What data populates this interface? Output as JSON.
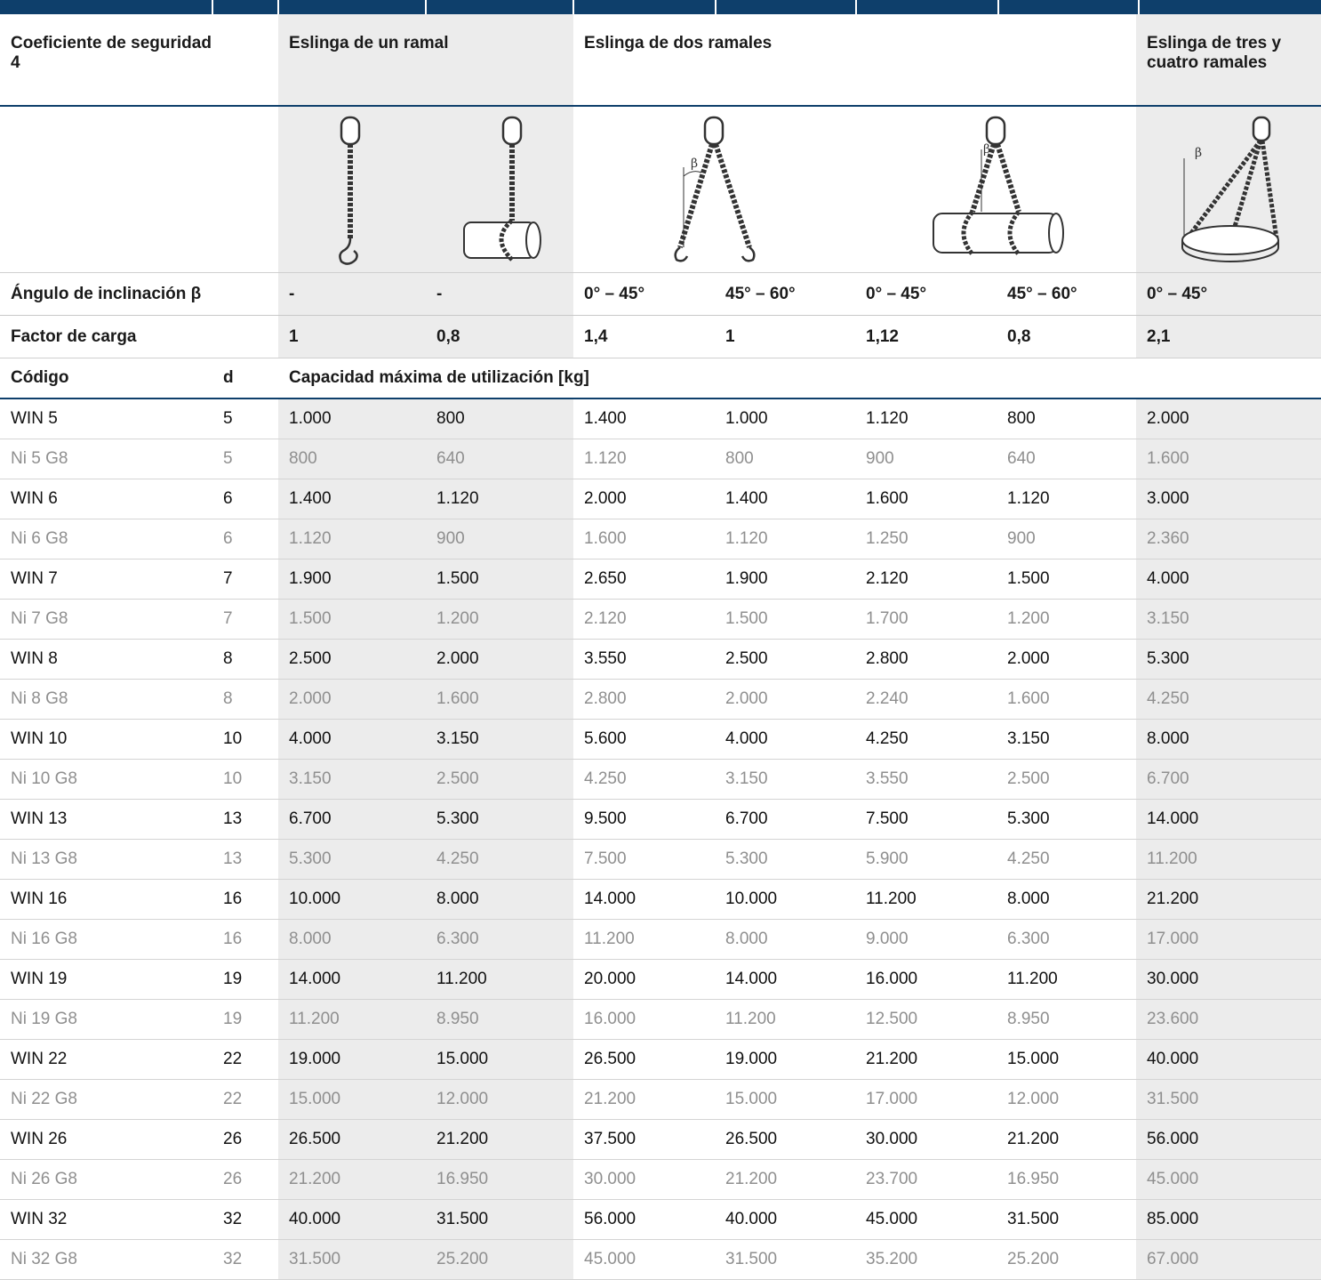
{
  "header": {
    "coeficiente": "Coeficiente de seguridad 4",
    "un_ramal": "Eslinga de un ramal",
    "dos_ramales": "Eslinga de dos ramales",
    "tres_cuatro": "Eslinga de tres y cuatro ramales"
  },
  "beta_symbol": "β",
  "angulo": {
    "label": "Ángulo de inclinación β",
    "values": [
      "-",
      "-",
      "0° – 45°",
      "45° – 60°",
      "0° – 45°",
      "45° – 60°",
      "0° – 45°"
    ]
  },
  "factor": {
    "label": "Factor de carga",
    "values": [
      "1",
      "0,8",
      "1,4",
      "1",
      "1,12",
      "0,8",
      "2,1"
    ]
  },
  "columns": {
    "codigo": "Código",
    "d": "d",
    "capacidad": "Capacidad máxima de utilización [kg]"
  },
  "rows": [
    {
      "code": "WIN 5",
      "d": "5",
      "v": [
        "1.000",
        "800",
        "1.400",
        "1.000",
        "1.120",
        "800",
        "2.000"
      ]
    },
    {
      "code": "Ni 5 G8",
      "d": "5",
      "v": [
        "800",
        "640",
        "1.120",
        "800",
        "900",
        "640",
        "1.600"
      ]
    },
    {
      "code": "WIN 6",
      "d": "6",
      "v": [
        "1.400",
        "1.120",
        "2.000",
        "1.400",
        "1.600",
        "1.120",
        "3.000"
      ]
    },
    {
      "code": "Ni 6 G8",
      "d": "6",
      "v": [
        "1.120",
        "900",
        "1.600",
        "1.120",
        "1.250",
        "900",
        "2.360"
      ]
    },
    {
      "code": "WIN 7",
      "d": "7",
      "v": [
        "1.900",
        "1.500",
        "2.650",
        "1.900",
        "2.120",
        "1.500",
        "4.000"
      ]
    },
    {
      "code": "Ni 7 G8",
      "d": "7",
      "v": [
        "1.500",
        "1.200",
        "2.120",
        "1.500",
        "1.700",
        "1.200",
        "3.150"
      ]
    },
    {
      "code": "WIN 8",
      "d": "8",
      "v": [
        "2.500",
        "2.000",
        "3.550",
        "2.500",
        "2.800",
        "2.000",
        "5.300"
      ]
    },
    {
      "code": "Ni 8 G8",
      "d": "8",
      "v": [
        "2.000",
        "1.600",
        "2.800",
        "2.000",
        "2.240",
        "1.600",
        "4.250"
      ]
    },
    {
      "code": "WIN 10",
      "d": "10",
      "v": [
        "4.000",
        "3.150",
        "5.600",
        "4.000",
        "4.250",
        "3.150",
        "8.000"
      ]
    },
    {
      "code": "Ni 10 G8",
      "d": "10",
      "v": [
        "3.150",
        "2.500",
        "4.250",
        "3.150",
        "3.550",
        "2.500",
        "6.700"
      ]
    },
    {
      "code": "WIN 13",
      "d": "13",
      "v": [
        "6.700",
        "5.300",
        "9.500",
        "6.700",
        "7.500",
        "5.300",
        "14.000"
      ]
    },
    {
      "code": "Ni 13 G8",
      "d": "13",
      "v": [
        "5.300",
        "4.250",
        "7.500",
        "5.300",
        "5.900",
        "4.250",
        "11.200"
      ]
    },
    {
      "code": "WIN 16",
      "d": "16",
      "v": [
        "10.000",
        "8.000",
        "14.000",
        "10.000",
        "11.200",
        "8.000",
        "21.200"
      ]
    },
    {
      "code": "Ni 16 G8",
      "d": "16",
      "v": [
        "8.000",
        "6.300",
        "11.200",
        "8.000",
        "9.000",
        "6.300",
        "17.000"
      ]
    },
    {
      "code": "WIN 19",
      "d": "19",
      "v": [
        "14.000",
        "11.200",
        "20.000",
        "14.000",
        "16.000",
        "11.200",
        "30.000"
      ]
    },
    {
      "code": "Ni 19 G8",
      "d": "19",
      "v": [
        "11.200",
        "8.950",
        "16.000",
        "11.200",
        "12.500",
        "8.950",
        "23.600"
      ]
    },
    {
      "code": "WIN 22",
      "d": "22",
      "v": [
        "19.000",
        "15.000",
        "26.500",
        "19.000",
        "21.200",
        "15.000",
        "40.000"
      ]
    },
    {
      "code": "Ni 22 G8",
      "d": "22",
      "v": [
        "15.000",
        "12.000",
        "21.200",
        "15.000",
        "17.000",
        "12.000",
        "31.500"
      ]
    },
    {
      "code": "WIN 26",
      "d": "26",
      "v": [
        "26.500",
        "21.200",
        "37.500",
        "26.500",
        "30.000",
        "21.200",
        "56.000"
      ]
    },
    {
      "code": "Ni 26 G8",
      "d": "26",
      "v": [
        "21.200",
        "16.950",
        "30.000",
        "21.200",
        "23.700",
        "16.950",
        "45.000"
      ]
    },
    {
      "code": "WIN 32",
      "d": "32",
      "v": [
        "40.000",
        "31.500",
        "56.000",
        "40.000",
        "45.000",
        "31.500",
        "85.000"
      ]
    },
    {
      "code": "Ni 32 G8",
      "d": "32",
      "v": [
        "31.500",
        "25.200",
        "45.000",
        "31.500",
        "35.200",
        "25.200",
        "67.000"
      ]
    }
  ]
}
